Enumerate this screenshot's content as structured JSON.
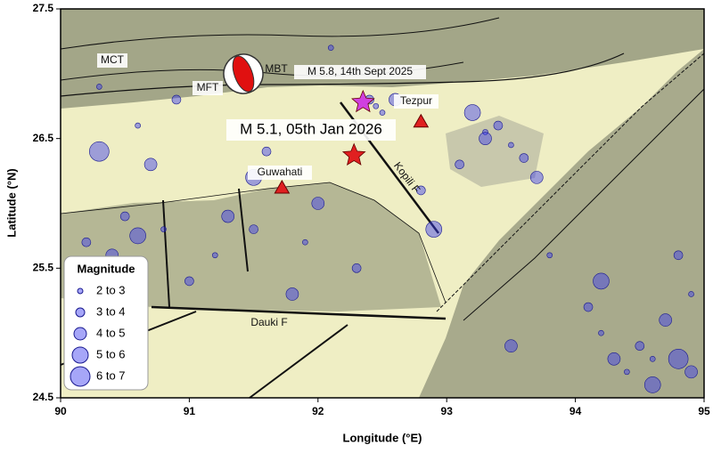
{
  "chart_data": {
    "type": "scatter",
    "xlabel": "Longitude (°E)",
    "ylabel": "Latitude (°N)",
    "xlim": [
      90,
      95
    ],
    "ylim": [
      24.5,
      27.5
    ],
    "xticks": [
      90,
      91,
      92,
      93,
      94,
      95
    ],
    "yticks": [
      24.5,
      25.5,
      26.5,
      27.5
    ],
    "legend_title": "Magnitude",
    "legend": "lower left",
    "series": [
      {
        "name": "2 to 3",
        "color": "#3a3af0",
        "x": [
          90.3,
          90.8,
          91.2,
          92.45,
          92.5,
          93.3,
          93.5,
          94.2,
          94.6,
          94.9,
          91.9,
          90.6,
          93.8,
          92.1,
          94.4
        ],
        "values": [
          26.9,
          25.8,
          25.6,
          26.75,
          26.7,
          26.55,
          26.45,
          25.0,
          24.8,
          25.3,
          25.7,
          26.6,
          25.6,
          27.2,
          24.7
        ]
      },
      {
        "name": "3 to 4",
        "color": "#3a3af0",
        "x": [
          90.2,
          90.5,
          91.0,
          91.5,
          92.3,
          92.4,
          93.1,
          93.4,
          93.6,
          94.1,
          94.5,
          94.8,
          91.6,
          92.8,
          90.9
        ],
        "values": [
          25.7,
          25.9,
          25.4,
          25.8,
          25.5,
          26.8,
          26.3,
          26.6,
          26.35,
          25.2,
          24.9,
          25.6,
          26.4,
          26.1,
          26.8
        ]
      },
      {
        "name": "4 to 5",
        "color": "#3a3af0",
        "x": [
          90.4,
          91.3,
          91.8,
          92.6,
          93.3,
          93.7,
          94.3,
          94.7,
          94.9,
          90.7,
          92.0,
          93.5
        ],
        "values": [
          25.6,
          25.9,
          25.3,
          26.8,
          26.5,
          26.2,
          24.8,
          25.1,
          24.7,
          26.3,
          26.0,
          24.9
        ]
      },
      {
        "name": "5 to 6",
        "color": "#3a3af0",
        "x": [
          90.6,
          91.5,
          93.2,
          94.6,
          94.2,
          92.9
        ],
        "values": [
          25.75,
          26.2,
          26.7,
          24.6,
          25.4,
          25.8
        ]
      },
      {
        "name": "6 to 7",
        "color": "#3a3af0",
        "x": [
          94.8,
          90.3
        ],
        "values": [
          24.8,
          26.4
        ]
      }
    ],
    "events": [
      {
        "label": "M 5.8, 14th Sept 2025",
        "x": 92.35,
        "y": 26.78,
        "color": "#d040e0"
      },
      {
        "label": "M 5.1, 05th Jan 2026",
        "x": 92.28,
        "y": 26.37,
        "color": "#e02020"
      }
    ],
    "places": [
      {
        "label": "Tezpur",
        "x": 92.8,
        "y": 26.63,
        "color": "#e02020"
      },
      {
        "label": "Guwahati",
        "x": 91.72,
        "y": 26.12,
        "color": "#e02020"
      }
    ],
    "faults": [
      "MCT",
      "MFT",
      "MBT",
      "Kopili F",
      "Dauki F"
    ]
  }
}
